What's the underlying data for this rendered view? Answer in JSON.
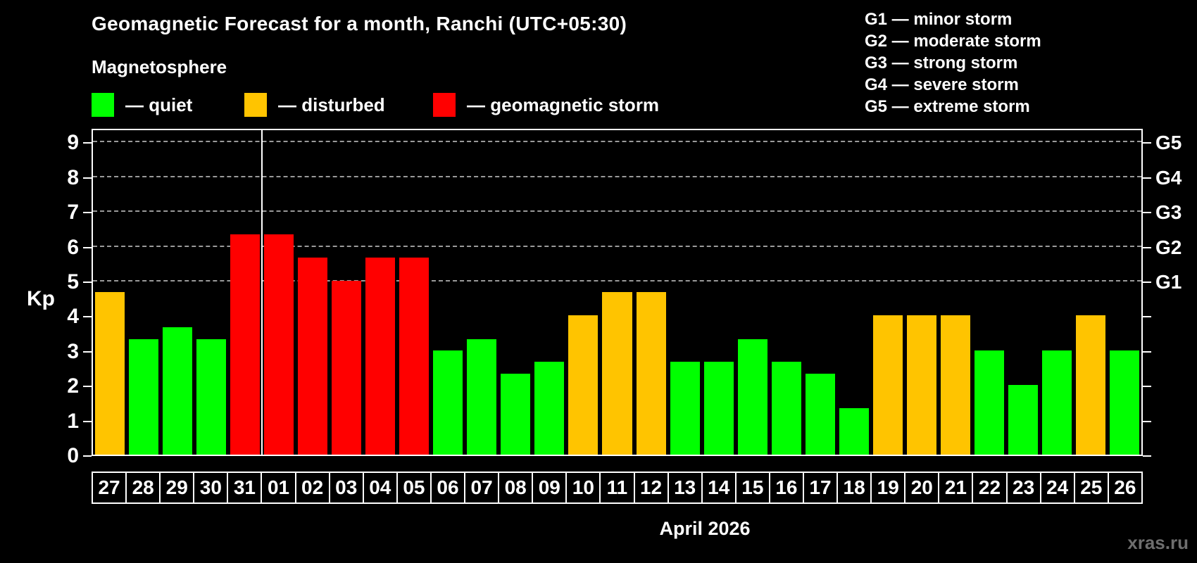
{
  "header": {
    "title": "Geomagnetic Forecast for a month, Ranchi (UTC+05:30)",
    "subtitle": "Magnetosphere"
  },
  "legend": [
    {
      "key": "quiet",
      "label": "— quiet",
      "color": "#00ff00"
    },
    {
      "key": "disturbed",
      "label": "— disturbed",
      "color": "#ffc400"
    },
    {
      "key": "storm",
      "label": "— geomagnetic storm",
      "color": "#ff0000"
    }
  ],
  "g_legend_lines": [
    "G1 — minor storm",
    "G2 — moderate storm",
    "G3 — strong storm",
    "G4 — severe storm",
    "G5 — extreme storm"
  ],
  "axis": {
    "kp_label": "Kp",
    "yticks": [
      "0",
      "1",
      "2",
      "3",
      "4",
      "5",
      "6",
      "7",
      "8",
      "9"
    ],
    "right_labels": [
      {
        "label": "G1",
        "kp": 5
      },
      {
        "label": "G2",
        "kp": 6
      },
      {
        "label": "G3",
        "kp": 7
      },
      {
        "label": "G4",
        "kp": 8
      },
      {
        "label": "G5",
        "kp": 9
      }
    ]
  },
  "xaxis_title": "April 2026",
  "watermark": "xras.ru",
  "chart_data": {
    "type": "bar",
    "title": "Geomagnetic Forecast for a month, Ranchi (UTC+05:30)",
    "ylabel": "Kp",
    "xlabel": "April 2026",
    "ylim": [
      0,
      9.4
    ],
    "grid": "dashed horizontal lines at Kp 5-9 only",
    "gridlines_kp": [
      5,
      6,
      7,
      8,
      9
    ],
    "separator_after_index": 4,
    "categories": [
      "27",
      "28",
      "29",
      "30",
      "31",
      "01",
      "02",
      "03",
      "04",
      "05",
      "06",
      "07",
      "08",
      "09",
      "10",
      "11",
      "12",
      "13",
      "14",
      "15",
      "16",
      "17",
      "18",
      "19",
      "20",
      "21",
      "22",
      "23",
      "24",
      "25",
      "26"
    ],
    "values": [
      4.67,
      3.33,
      3.67,
      3.33,
      6.33,
      6.33,
      5.67,
      5.0,
      5.67,
      5.67,
      3.0,
      3.33,
      2.33,
      2.67,
      4.0,
      4.67,
      4.67,
      2.67,
      2.67,
      3.33,
      2.67,
      2.33,
      1.33,
      4.0,
      4.0,
      4.0,
      3.0,
      2.0,
      3.0,
      4.0,
      3.0
    ],
    "statuses": [
      "disturbed",
      "quiet",
      "quiet",
      "quiet",
      "storm",
      "storm",
      "storm",
      "storm",
      "storm",
      "storm",
      "quiet",
      "quiet",
      "quiet",
      "quiet",
      "disturbed",
      "disturbed",
      "disturbed",
      "quiet",
      "quiet",
      "quiet",
      "quiet",
      "quiet",
      "quiet",
      "disturbed",
      "disturbed",
      "disturbed",
      "quiet",
      "quiet",
      "quiet",
      "disturbed",
      "quiet"
    ]
  }
}
